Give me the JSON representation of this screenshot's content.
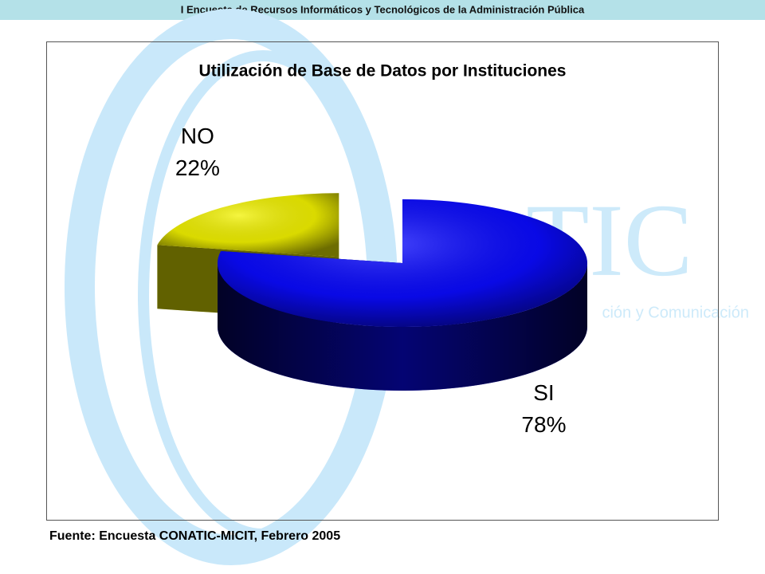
{
  "header": {
    "title": "I Encuesta de Recursos Informáticos y Tecnológicos de la Administración Pública"
  },
  "watermark": {
    "logo": "TIC",
    "tagline": "ción y Comunicación"
  },
  "chart_data": {
    "type": "pie",
    "title": "Utilización de Base de Datos por Instituciones",
    "categories": [
      "SI",
      "NO"
    ],
    "values": [
      78,
      22
    ],
    "value_labels": [
      "78%",
      "22%"
    ],
    "colors": [
      "#0a0aff",
      "#f2f200"
    ]
  },
  "footer": {
    "source": "Fuente: Encuesta CONATIC-MICIT, Febrero 2005"
  }
}
